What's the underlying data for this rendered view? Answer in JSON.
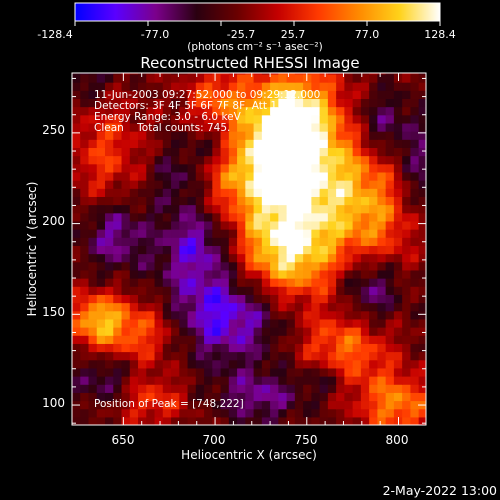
{
  "colorbar": {
    "ticks": [
      "-128.4",
      "-77.0",
      "-25.7",
      "25.7",
      "77.0",
      "128.4"
    ],
    "unit_label": "(photons cm⁻² s⁻¹ asec⁻²)",
    "range": [
      -128.4,
      128.4
    ],
    "colors": [
      "#0000ff",
      "#5a00ff",
      "#7b008a",
      "#2a0010",
      "#6a0000",
      "#c40000",
      "#ff3a00",
      "#ff8a00",
      "#ffd21a",
      "#ffffff"
    ]
  },
  "chart_data": {
    "type": "heatmap",
    "title": "Reconstructed RHESSI Image",
    "xlabel": "Heliocentric X (arcsec)",
    "ylabel": "Heliocentric Y (arcsec)",
    "xlim": [
      622,
      815
    ],
    "ylim": [
      89,
      283
    ],
    "xticks": [
      "650",
      "700",
      "750",
      "800"
    ],
    "yticks": [
      "100",
      "150",
      "200",
      "250"
    ],
    "grid": false,
    "annotations": [
      "11-Jun-2003 09:27:52.000 to 09:29:12.000",
      "Detectors: 3F 4F 5F 6F 7F 8F, Att 1",
      "Energy Range: 3.0 - 6.0 keV",
      "Clean    Total counts: 745.",
      "Position of Peak = [748,222]"
    ],
    "peak": {
      "x": 748,
      "y": 222
    },
    "sources": [
      {
        "x": 752,
        "y": 225,
        "sx": 28,
        "sy": 32,
        "amp": 128
      },
      {
        "x": 738,
        "y": 182,
        "sx": 18,
        "sy": 18,
        "amp": 95
      },
      {
        "x": 720,
        "y": 238,
        "sx": 20,
        "sy": 22,
        "amp": 80
      },
      {
        "x": 743,
        "y": 262,
        "sx": 14,
        "sy": 16,
        "amp": 85
      },
      {
        "x": 660,
        "y": 142,
        "sx": 20,
        "sy": 14,
        "amp": 90
      },
      {
        "x": 635,
        "y": 148,
        "sx": 10,
        "sy": 10,
        "amp": 80
      },
      {
        "x": 770,
        "y": 130,
        "sx": 18,
        "sy": 16,
        "amp": 80
      },
      {
        "x": 800,
        "y": 100,
        "sx": 14,
        "sy": 12,
        "amp": 85
      },
      {
        "x": 640,
        "y": 240,
        "sx": 14,
        "sy": 25,
        "amp": 55
      },
      {
        "x": 700,
        "y": 270,
        "sx": 12,
        "sy": 12,
        "amp": 50
      },
      {
        "x": 665,
        "y": 103,
        "sx": 14,
        "sy": 10,
        "amp": 55
      },
      {
        "x": 790,
        "y": 200,
        "sx": 14,
        "sy": 24,
        "amp": 50
      },
      {
        "x": 690,
        "y": 190,
        "sx": 14,
        "sy": 14,
        "amp": -70
      },
      {
        "x": 700,
        "y": 150,
        "sx": 26,
        "sy": 18,
        "amp": -95
      },
      {
        "x": 700,
        "y": 245,
        "sx": 12,
        "sy": 10,
        "amp": -60
      },
      {
        "x": 785,
        "y": 165,
        "sx": 12,
        "sy": 14,
        "amp": -75
      },
      {
        "x": 790,
        "y": 255,
        "sx": 12,
        "sy": 14,
        "amp": -65
      },
      {
        "x": 645,
        "y": 195,
        "sx": 12,
        "sy": 14,
        "amp": -65
      },
      {
        "x": 815,
        "y": 230,
        "sx": 12,
        "sy": 18,
        "amp": -55
      },
      {
        "x": 630,
        "y": 280,
        "sx": 12,
        "sy": 12,
        "amp": -40
      },
      {
        "x": 640,
        "y": 115,
        "sx": 12,
        "sy": 10,
        "amp": -50
      },
      {
        "x": 725,
        "y": 105,
        "sx": 16,
        "sy": 10,
        "amp": -55
      },
      {
        "x": 680,
        "y": 225,
        "sx": 10,
        "sy": 12,
        "amp": -45
      },
      {
        "x": 760,
        "y": 115,
        "sx": 10,
        "sy": 8,
        "amp": -50
      }
    ]
  },
  "footer": {
    "date": "2-May-2022 13:00"
  }
}
